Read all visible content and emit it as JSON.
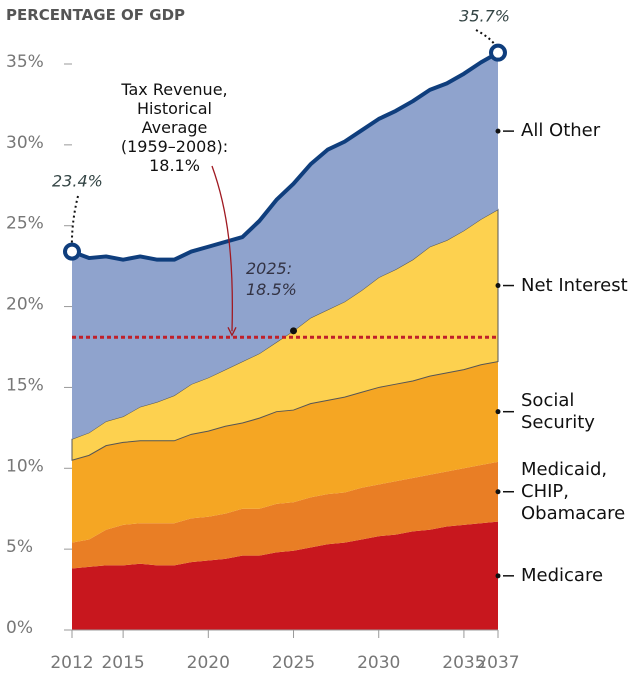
{
  "chart_data": {
    "type": "stacked_area",
    "title": "PERCENTAGE OF GDP",
    "x": [
      2012,
      2013,
      2014,
      2015,
      2016,
      2017,
      2018,
      2019,
      2020,
      2021,
      2022,
      2023,
      2024,
      2025,
      2026,
      2027,
      2028,
      2029,
      2030,
      2031,
      2032,
      2033,
      2034,
      2035,
      2036,
      2037
    ],
    "series": [
      {
        "name": "Medicare",
        "color": "#c8171e",
        "values": [
          3.8,
          3.9,
          4.0,
          4.0,
          4.1,
          4.0,
          4.0,
          4.2,
          4.3,
          4.4,
          4.6,
          4.6,
          4.8,
          4.9,
          5.1,
          5.3,
          5.4,
          5.6,
          5.8,
          5.9,
          6.1,
          6.2,
          6.4,
          6.5,
          6.6,
          6.7
        ]
      },
      {
        "name": "Medicaid, CHIP, Obamacare",
        "color": "#e97e25",
        "values": [
          1.6,
          1.7,
          2.2,
          2.5,
          2.5,
          2.6,
          2.6,
          2.7,
          2.7,
          2.8,
          2.9,
          2.9,
          3.0,
          3.0,
          3.1,
          3.1,
          3.1,
          3.2,
          3.2,
          3.3,
          3.3,
          3.4,
          3.4,
          3.5,
          3.6,
          3.7
        ]
      },
      {
        "name": "Social Security",
        "color": "#f5a623",
        "values": [
          5.1,
          5.2,
          5.2,
          5.1,
          5.1,
          5.1,
          5.1,
          5.2,
          5.3,
          5.4,
          5.3,
          5.6,
          5.7,
          5.7,
          5.8,
          5.8,
          5.9,
          5.9,
          6.0,
          6.0,
          6.0,
          6.1,
          6.1,
          6.1,
          6.2,
          6.2
        ]
      },
      {
        "name": "Net Interest",
        "color": "#fdd14f",
        "values": [
          1.3,
          1.4,
          1.5,
          1.6,
          2.1,
          2.4,
          2.8,
          3.1,
          3.3,
          3.5,
          3.8,
          4.0,
          4.3,
          4.9,
          5.3,
          5.6,
          5.9,
          6.3,
          6.8,
          7.1,
          7.5,
          8.0,
          8.2,
          8.6,
          9.0,
          9.4
        ]
      },
      {
        "name": "All Other",
        "color": "#8fa3cd",
        "values": [
          11.6,
          10.8,
          10.2,
          9.7,
          9.3,
          8.8,
          8.4,
          8.2,
          8.1,
          7.9,
          7.7,
          8.2,
          8.8,
          9.1,
          9.5,
          9.9,
          9.9,
          9.9,
          9.8,
          9.8,
          9.8,
          9.7,
          9.7,
          9.7,
          9.7,
          9.7
        ]
      }
    ],
    "xlim": [
      2012,
      2037
    ],
    "xticks": [
      2012,
      2015,
      2020,
      2025,
      2030,
      2035,
      2037
    ],
    "ylim": [
      0,
      35
    ],
    "yticks": [
      {
        "value": 0,
        "label": "0%"
      },
      {
        "value": 5,
        "label": "5%"
      },
      {
        "value": 10,
        "label": "10%"
      },
      {
        "value": 15,
        "label": "15%"
      },
      {
        "value": 20,
        "label": "20%"
      },
      {
        "value": 25,
        "label": "25%"
      },
      {
        "value": 30,
        "label": "30%"
      },
      {
        "value": 35,
        "label": "35%"
      }
    ],
    "outline_color": "#0f3e7d",
    "reference_line": {
      "label": "Tax Revenue, Historical Average (1959–2008): 18.1%",
      "value": 18.1,
      "color": "#c0202a"
    },
    "annotations": [
      {
        "label": "23.4%",
        "x": 2012,
        "y": 23.4
      },
      {
        "label": "35.7%",
        "x": 2037,
        "y": 35.7
      },
      {
        "label": "2025: 18.5%",
        "x": 2025,
        "y": 18.5
      }
    ]
  }
}
